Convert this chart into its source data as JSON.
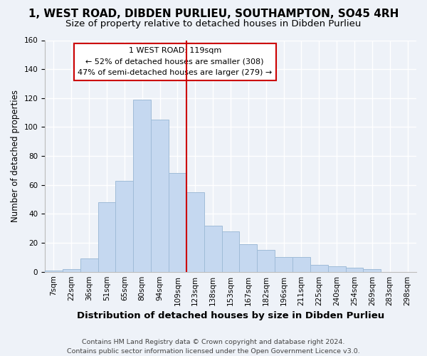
{
  "title": "1, WEST ROAD, DIBDEN PURLIEU, SOUTHAMPTON, SO45 4RH",
  "subtitle": "Size of property relative to detached houses in Dibden Purlieu",
  "xlabel": "Distribution of detached houses by size in Dibden Purlieu",
  "ylabel": "Number of detached properties",
  "bar_values": [
    1,
    2,
    9,
    48,
    63,
    119,
    105,
    68,
    55,
    32,
    28,
    19,
    15,
    10,
    10,
    5,
    4,
    3,
    2,
    0,
    0
  ],
  "x_tick_labels": [
    "7sqm",
    "22sqm",
    "36sqm",
    "51sqm",
    "65sqm",
    "80sqm",
    "94sqm",
    "109sqm",
    "123sqm",
    "138sqm",
    "153sqm",
    "167sqm",
    "182sqm",
    "196sqm",
    "211sqm",
    "225sqm",
    "240sqm",
    "254sqm",
    "269sqm",
    "283sqm",
    "298sqm"
  ],
  "bar_color": "#c5d8f0",
  "bar_edge_color": "#a0bcd8",
  "vline_pos": 8,
  "vline_color": "#cc0000",
  "ylim": [
    0,
    160
  ],
  "yticks": [
    0,
    20,
    40,
    60,
    80,
    100,
    120,
    140,
    160
  ],
  "annotation_title": "1 WEST ROAD: 119sqm",
  "annotation_line1": "← 52% of detached houses are smaller (308)",
  "annotation_line2": "47% of semi-detached houses are larger (279) →",
  "footer1": "Contains HM Land Registry data © Crown copyright and database right 2024.",
  "footer2": "Contains public sector information licensed under the Open Government Licence v3.0.",
  "background_color": "#eef2f8",
  "grid_color": "#ffffff",
  "title_fontsize": 11,
  "subtitle_fontsize": 9.5,
  "xlabel_fontsize": 9.5,
  "ylabel_fontsize": 8.5,
  "tick_fontsize": 7.5,
  "footer_fontsize": 6.8
}
